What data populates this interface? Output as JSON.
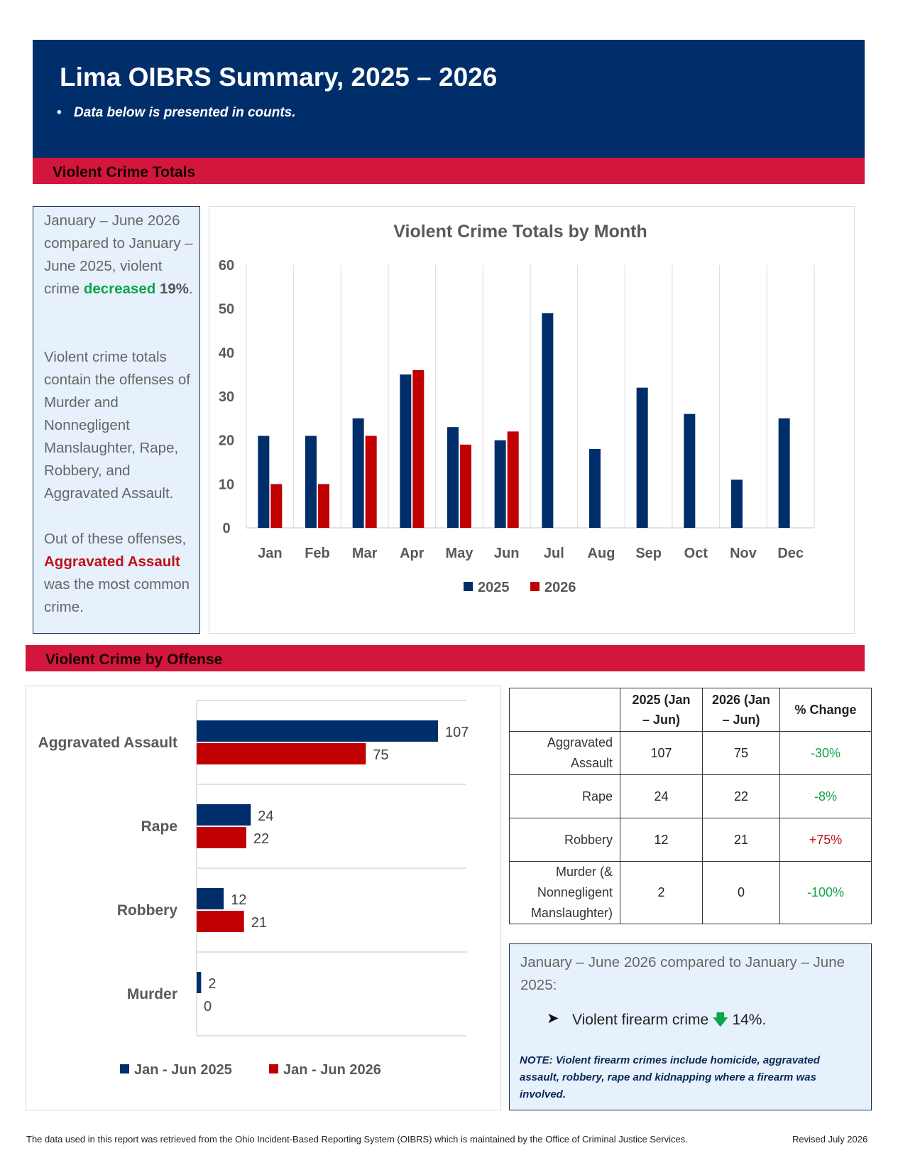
{
  "header": {
    "title": "Lima OIBRS Summary, 2025 – 2026",
    "subtitle": "Data below is presented in counts."
  },
  "sections": {
    "violent_totals": "Violent Crime Totals",
    "by_offense": "Violent Crime by Offense"
  },
  "sidebar": {
    "p1_a": "January – June 2026 compared to January – June 2025, violent crime ",
    "p1_highlight": "decreased",
    "p1_b": " ",
    "p1_pct": "19%",
    "p1_c": ".",
    "p2": "Violent crime totals contain the offenses of Murder and Nonnegligent Manslaughter, Rape, Robbery, and Aggravated Assault.",
    "p3_a": "Out of these offenses, ",
    "p3_highlight": "Aggravated Assault",
    "p3_b": " was the most common crime."
  },
  "colors": {
    "navy": "#002e6b",
    "red": "#c00000",
    "green": "#10a34a"
  },
  "chart_data": [
    {
      "type": "bar",
      "title": "Violent Crime Totals by Month",
      "categories": [
        "Jan",
        "Feb",
        "Mar",
        "Apr",
        "May",
        "Jun",
        "Jul",
        "Aug",
        "Sep",
        "Oct",
        "Nov",
        "Dec"
      ],
      "series": [
        {
          "name": "2025",
          "values": [
            21,
            21,
            25,
            35,
            23,
            20,
            49,
            18,
            32,
            26,
            11,
            25
          ]
        },
        {
          "name": "2026",
          "values": [
            10,
            10,
            21,
            36,
            19,
            22,
            null,
            null,
            null,
            null,
            null,
            null
          ]
        }
      ],
      "ylim": [
        0,
        60
      ],
      "yticks": [
        0,
        10,
        20,
        30,
        40,
        50,
        60
      ],
      "grid": "vertical",
      "legend": "bottom"
    },
    {
      "type": "bar",
      "orientation": "horizontal",
      "categories": [
        "Aggravated Assault",
        "Rape",
        "Robbery",
        "Murder"
      ],
      "series": [
        {
          "name": "Jan - Jun 2025",
          "values": [
            107,
            24,
            12,
            2
          ]
        },
        {
          "name": "Jan - Jun 2026",
          "values": [
            75,
            22,
            21,
            0
          ]
        }
      ],
      "legend": "bottom"
    }
  ],
  "table": {
    "headers": [
      "",
      "2025 (Jan – Jun)",
      "2026 (Jan – Jun)",
      "% Change"
    ],
    "rows": [
      {
        "offense": "Aggravated Assault",
        "y2025": "107",
        "y2026": "75",
        "change": "-30%",
        "dir": "neg"
      },
      {
        "offense": "Rape",
        "y2025": "24",
        "y2026": "22",
        "change": "-8%",
        "dir": "neg"
      },
      {
        "offense": "Robbery",
        "y2025": "12",
        "y2026": "21",
        "change": "+75%",
        "dir": "pos"
      },
      {
        "offense": "Murder (& Nonnegligent Manslaughter)",
        "y2025": "2",
        "y2026": "0",
        "change": "-100%",
        "dir": "neg"
      }
    ]
  },
  "note": {
    "intro": "January – June 2026 compared to January – June 2025:",
    "bullet_a": "Violent firearm crime",
    "down_icon": "down-arrow-icon",
    "bullet_b": "14%.",
    "fine": "NOTE: Violent firearm crimes include homicide, aggravated assault, robbery, rape and kidnapping where a firearm was involved."
  },
  "footer": {
    "source": "The data used in this report was retrieved from the Ohio Incident-Based Reporting System (OIBRS) which is maintained by the Office of Criminal Justice Services.",
    "revised": "Revised July 2026"
  }
}
